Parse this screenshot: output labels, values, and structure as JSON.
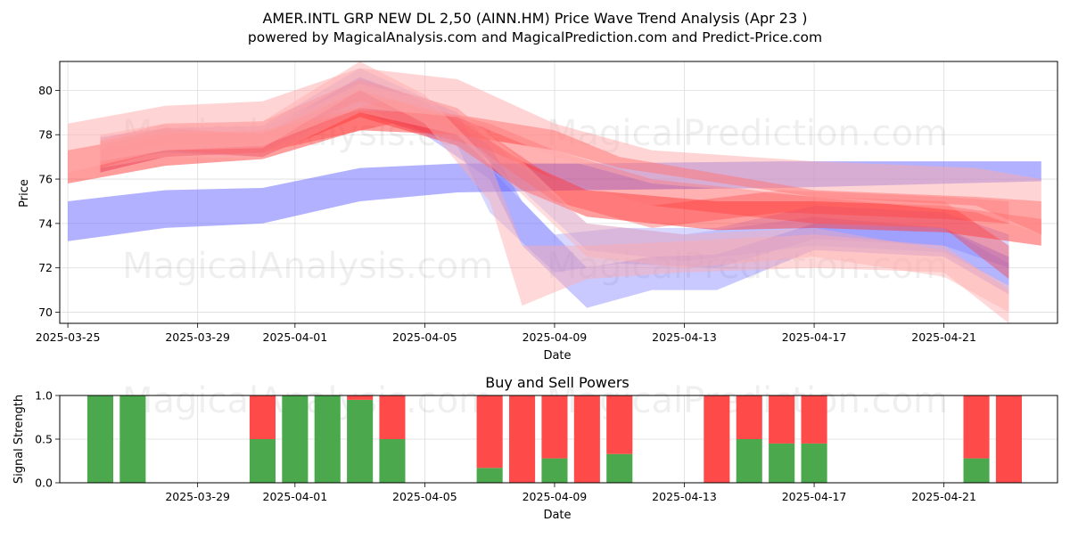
{
  "chart_data": [
    {
      "type": "area",
      "title": "AMER.INTL GRP NEW DL 2,50 (AINN.HM) Price Wave Trend Analysis (Apr 23 )",
      "subtitle": "powered by MagicalAnalysis.com and MagicalPrediction.com and Predict-Price.com",
      "xlabel": "Date",
      "ylabel": "Price",
      "ylim": [
        69.5,
        81.3
      ],
      "xlim": [
        "2025-03-24T18:00",
        "2025-04-24T12:00"
      ],
      "x_ticks": [
        "2025-03-25",
        "2025-03-29",
        "2025-04-01",
        "2025-04-05",
        "2025-04-09",
        "2025-04-13",
        "2025-04-17",
        "2025-04-21"
      ],
      "y_ticks": [
        70,
        72,
        74,
        76,
        78,
        80
      ],
      "grid": true,
      "watermarks": [
        "MagicalAnalysis.com",
        "MagicalPrediction.com",
        "MagicalAnalysis.com",
        "MagicalPrediction.com"
      ],
      "colors": {
        "blue": "#6464ff",
        "red": "#ff3c3c",
        "pink": "#ffaaaa"
      },
      "bands": [
        {
          "color": "blue",
          "opacity": 0.5,
          "points": [
            [
              "2025-03-25",
              73.2,
              75.0
            ],
            [
              "2025-03-28",
              73.8,
              75.5
            ],
            [
              "2025-03-31",
              74.0,
              75.6
            ],
            [
              "2025-04-03",
              75.0,
              76.5
            ],
            [
              "2025-04-06",
              75.4,
              76.7
            ],
            [
              "2025-04-10",
              75.5,
              76.7
            ],
            [
              "2025-04-16",
              75.6,
              76.8
            ],
            [
              "2025-04-24",
              75.9,
              76.8
            ]
          ]
        },
        {
          "color": "blue",
          "opacity": 0.35,
          "points": [
            [
              "2025-03-26",
              76.8,
              77.9
            ],
            [
              "2025-03-28",
              77.2,
              78.3
            ],
            [
              "2025-03-31",
              77.0,
              78.0
            ],
            [
              "2025-04-03",
              79.0,
              80.6
            ],
            [
              "2025-04-05",
              78.0,
              79.5
            ],
            [
              "2025-04-07",
              76.0,
              77.5
            ],
            [
              "2025-04-08",
              73.0,
              75.0
            ],
            [
              "2025-04-10",
              70.2,
              72.0
            ],
            [
              "2025-04-12",
              71.0,
              72.5
            ],
            [
              "2025-04-14",
              71.0,
              72.6
            ],
            [
              "2025-04-17",
              72.8,
              74.0
            ],
            [
              "2025-04-21",
              72.5,
              73.8
            ],
            [
              "2025-04-23",
              70.8,
              72.5
            ]
          ]
        },
        {
          "color": "blue",
          "opacity": 0.25,
          "points": [
            [
              "2025-03-26",
              76.3,
              77.5
            ],
            [
              "2025-03-28",
              77.0,
              78.3
            ],
            [
              "2025-03-31",
              77.2,
              78.4
            ],
            [
              "2025-04-03",
              79.3,
              81.0
            ],
            [
              "2025-04-06",
              77.5,
              79.0
            ],
            [
              "2025-04-07",
              74.5,
              76.5
            ],
            [
              "2025-04-09",
              71.8,
              73.5
            ],
            [
              "2025-04-11",
              72.2,
              73.8
            ],
            [
              "2025-04-14",
              72.0,
              73.8
            ],
            [
              "2025-04-17",
              73.3,
              74.8
            ],
            [
              "2025-04-21",
              73.0,
              74.5
            ],
            [
              "2025-04-23",
              72.0,
              73.5
            ]
          ]
        },
        {
          "color": "blue",
          "opacity": 0.2,
          "points": [
            [
              "2025-03-26",
              76.9,
              77.6
            ],
            [
              "2025-03-28",
              77.6,
              78.3
            ],
            [
              "2025-03-31",
              77.5,
              78.2
            ],
            [
              "2025-04-03",
              79.6,
              80.6
            ],
            [
              "2025-04-06",
              78.0,
              79.0
            ],
            [
              "2025-04-08",
              75.5,
              76.5
            ],
            [
              "2025-04-10",
              72.8,
              74.0
            ],
            [
              "2025-04-13",
              72.3,
              73.5
            ],
            [
              "2025-04-17",
              73.0,
              74.3
            ],
            [
              "2025-04-21",
              72.7,
              73.8
            ],
            [
              "2025-04-23",
              71.2,
              72.2
            ]
          ]
        },
        {
          "color": "red",
          "opacity": 0.5,
          "points": [
            [
              "2025-03-25",
              75.8,
              77.3
            ],
            [
              "2025-03-28",
              76.6,
              78.1
            ],
            [
              "2025-03-31",
              76.9,
              78.1
            ],
            [
              "2025-04-03",
              78.2,
              79.1
            ],
            [
              "2025-04-06",
              78.0,
              78.9
            ],
            [
              "2025-04-09",
              77.3,
              78.2
            ],
            [
              "2025-04-11",
              76.5,
              77.0
            ],
            [
              "2025-04-17",
              75.2,
              75.5
            ],
            [
              "2025-04-22",
              74.8,
              75.2
            ],
            [
              "2025-04-24",
              73.5,
              75.0
            ]
          ]
        },
        {
          "color": "red",
          "opacity": 0.5,
          "points": [
            [
              "2025-03-26",
              76.5,
              77.7
            ],
            [
              "2025-03-28",
              77.3,
              78.3
            ],
            [
              "2025-03-31",
              77.0,
              78.0
            ],
            [
              "2025-04-03",
              78.8,
              80.0
            ],
            [
              "2025-04-06",
              77.5,
              78.7
            ],
            [
              "2025-04-08",
              75.5,
              76.8
            ],
            [
              "2025-04-10",
              74.3,
              75.5
            ],
            [
              "2025-04-14",
              73.7,
              75.0
            ],
            [
              "2025-04-17",
              73.8,
              75.0
            ],
            [
              "2025-04-21",
              73.6,
              74.8
            ],
            [
              "2025-04-24",
              73.0,
              74.2
            ]
          ]
        },
        {
          "color": "red",
          "opacity": 0.35,
          "points": [
            [
              "2025-03-26",
              76.8,
              77.8
            ],
            [
              "2025-03-28",
              77.5,
              78.5
            ],
            [
              "2025-03-31",
              77.6,
              78.6
            ],
            [
              "2025-04-03",
              79.5,
              80.5
            ],
            [
              "2025-04-06",
              78.2,
              79.2
            ],
            [
              "2025-04-07",
              77.0,
              78.0
            ],
            [
              "2025-04-09",
              75.0,
              76.0
            ],
            [
              "2025-04-12",
              73.8,
              74.8
            ],
            [
              "2025-04-16",
              74.5,
              75.5
            ],
            [
              "2025-04-21",
              74.2,
              75.2
            ],
            [
              "2025-04-23",
              74.0,
              75.0
            ]
          ]
        },
        {
          "color": "red",
          "opacity": 0.4,
          "points": [
            [
              "2025-03-26",
              76.3,
              77.3
            ],
            [
              "2025-03-28",
              77.0,
              78.0
            ],
            [
              "2025-03-31",
              77.2,
              78.2
            ],
            [
              "2025-04-04",
              78.5,
              79.6
            ],
            [
              "2025-04-07",
              77.3,
              78.5
            ],
            [
              "2025-04-09",
              76.0,
              77.3
            ],
            [
              "2025-04-12",
              74.8,
              76.0
            ],
            [
              "2025-04-17",
              74.0,
              75.2
            ],
            [
              "2025-04-21",
              73.8,
              75.0
            ],
            [
              "2025-04-23",
              71.5,
              73.0
            ]
          ]
        },
        {
          "color": "pink",
          "opacity": 0.5,
          "points": [
            [
              "2025-03-25",
              76.3,
              78.5
            ],
            [
              "2025-03-28",
              77.3,
              79.3
            ],
            [
              "2025-03-31",
              77.5,
              79.5
            ],
            [
              "2025-04-03",
              79.2,
              81.0
            ],
            [
              "2025-04-06",
              78.8,
              80.5
            ],
            [
              "2025-04-09",
              77.0,
              78.5
            ],
            [
              "2025-04-12",
              75.8,
              77.3
            ],
            [
              "2025-04-17",
              75.2,
              76.8
            ],
            [
              "2025-04-22",
              74.5,
              76.5
            ],
            [
              "2025-04-24",
              73.5,
              76.0
            ]
          ]
        },
        {
          "color": "pink",
          "opacity": 0.45,
          "points": [
            [
              "2025-03-26",
              76.8,
              78.0
            ],
            [
              "2025-03-28",
              77.3,
              78.5
            ],
            [
              "2025-03-31",
              77.4,
              78.6
            ],
            [
              "2025-04-03",
              80.0,
              81.3
            ],
            [
              "2025-04-05",
              78.5,
              79.8
            ],
            [
              "2025-04-07",
              75.0,
              76.8
            ],
            [
              "2025-04-08",
              70.3,
              73.0
            ],
            [
              "2025-04-10",
              71.5,
              73.0
            ],
            [
              "2025-04-13",
              71.8,
              73.2
            ],
            [
              "2025-04-17",
              72.0,
              73.5
            ],
            [
              "2025-04-21",
              71.8,
              73.0
            ],
            [
              "2025-04-23",
              69.5,
              71.0
            ]
          ]
        },
        {
          "color": "pink",
          "opacity": 0.4,
          "points": [
            [
              "2025-03-26",
              76.5,
              77.8
            ],
            [
              "2025-03-28",
              77.0,
              78.3
            ],
            [
              "2025-03-31",
              76.9,
              78.2
            ],
            [
              "2025-04-03",
              79.0,
              80.3
            ],
            [
              "2025-04-06",
              78.0,
              79.2
            ],
            [
              "2025-04-08",
              75.3,
              76.8
            ],
            [
              "2025-04-10",
              72.5,
              74.0
            ],
            [
              "2025-04-13",
              72.0,
              73.5
            ],
            [
              "2025-04-17",
              72.5,
              73.8
            ],
            [
              "2025-04-21",
              71.6,
              72.8
            ],
            [
              "2025-04-23",
              70.0,
              71.2
            ]
          ]
        }
      ]
    },
    {
      "type": "bar",
      "title": "Buy and Sell Powers",
      "xlabel": "Date",
      "ylabel": "Signal Strength",
      "ylim": [
        0,
        1
      ],
      "xlim": [
        "2025-03-24T18:00",
        "2025-04-24T12:00"
      ],
      "x_ticks": [
        "2025-03-29",
        "2025-04-01",
        "2025-04-05",
        "2025-04-09",
        "2025-04-13",
        "2025-04-17",
        "2025-04-21"
      ],
      "y_ticks": [
        "0.0",
        "0.5",
        "1.0"
      ],
      "grid": true,
      "watermarks": [
        "MagicalAnalysis.com",
        "MagicalPrediction.com"
      ],
      "colors": {
        "buy": "#4ca84c",
        "sell": "#ff4a4a"
      },
      "dates": [
        "2025-03-26",
        "2025-03-27",
        "2025-03-31",
        "2025-04-01",
        "2025-04-02",
        "2025-04-03",
        "2025-04-04",
        "2025-04-07",
        "2025-04-08",
        "2025-04-09",
        "2025-04-10",
        "2025-04-11",
        "2025-04-14",
        "2025-04-15",
        "2025-04-16",
        "2025-04-17",
        "2025-04-22",
        "2025-04-23"
      ],
      "series": [
        {
          "name": "buy",
          "values": [
            1.0,
            1.0,
            0.5,
            1.0,
            1.0,
            0.95,
            0.5,
            0.17,
            0.0,
            0.28,
            0.0,
            0.33,
            0.0,
            0.5,
            0.45,
            0.45,
            0.28,
            0.0
          ]
        },
        {
          "name": "sell",
          "values": [
            0.0,
            0.0,
            0.5,
            0.0,
            0.0,
            0.05,
            0.5,
            0.83,
            1.0,
            0.72,
            1.0,
            0.67,
            1.0,
            0.5,
            0.55,
            0.55,
            0.72,
            1.0
          ]
        }
      ]
    }
  ]
}
